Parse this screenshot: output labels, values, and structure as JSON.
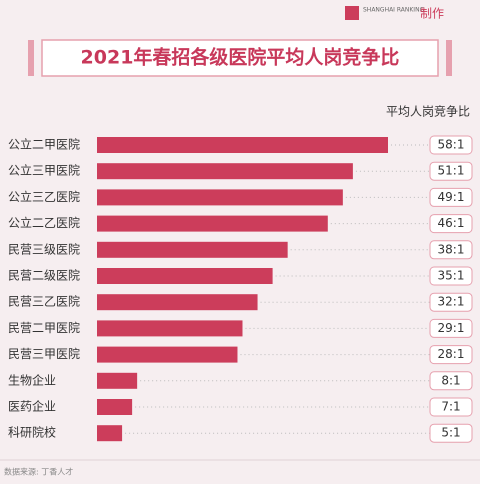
{
  "chart_data": {
    "type": "bar",
    "orientation": "horizontal",
    "title": "2021年春招各级医院平均人岗竞争比",
    "value_axis_label": "平均人岗竞争比",
    "source": "数据来源: 丁香人才",
    "logo_text": "SHANGHAI RANKING",
    "maker_text": "制作",
    "color": "#cc3d5b",
    "categories": [
      "公立二甲医院",
      "公立三甲医院",
      "公立三乙医院",
      "公立二乙医院",
      "民营三级医院",
      "民营二级医院",
      "民营三乙医院",
      "民营二甲医院",
      "民营三甲医院",
      "生物企业",
      "医药企业",
      "科研院校"
    ],
    "values": [
      58,
      51,
      49,
      46,
      38,
      35,
      32,
      29,
      28,
      8,
      7,
      5
    ],
    "value_labels": [
      "58:1",
      "51:1",
      "49:1",
      "46:1",
      "38:1",
      "35:1",
      "32:1",
      "29:1",
      "28:1",
      "8:1",
      "7:1",
      "5:1"
    ]
  }
}
